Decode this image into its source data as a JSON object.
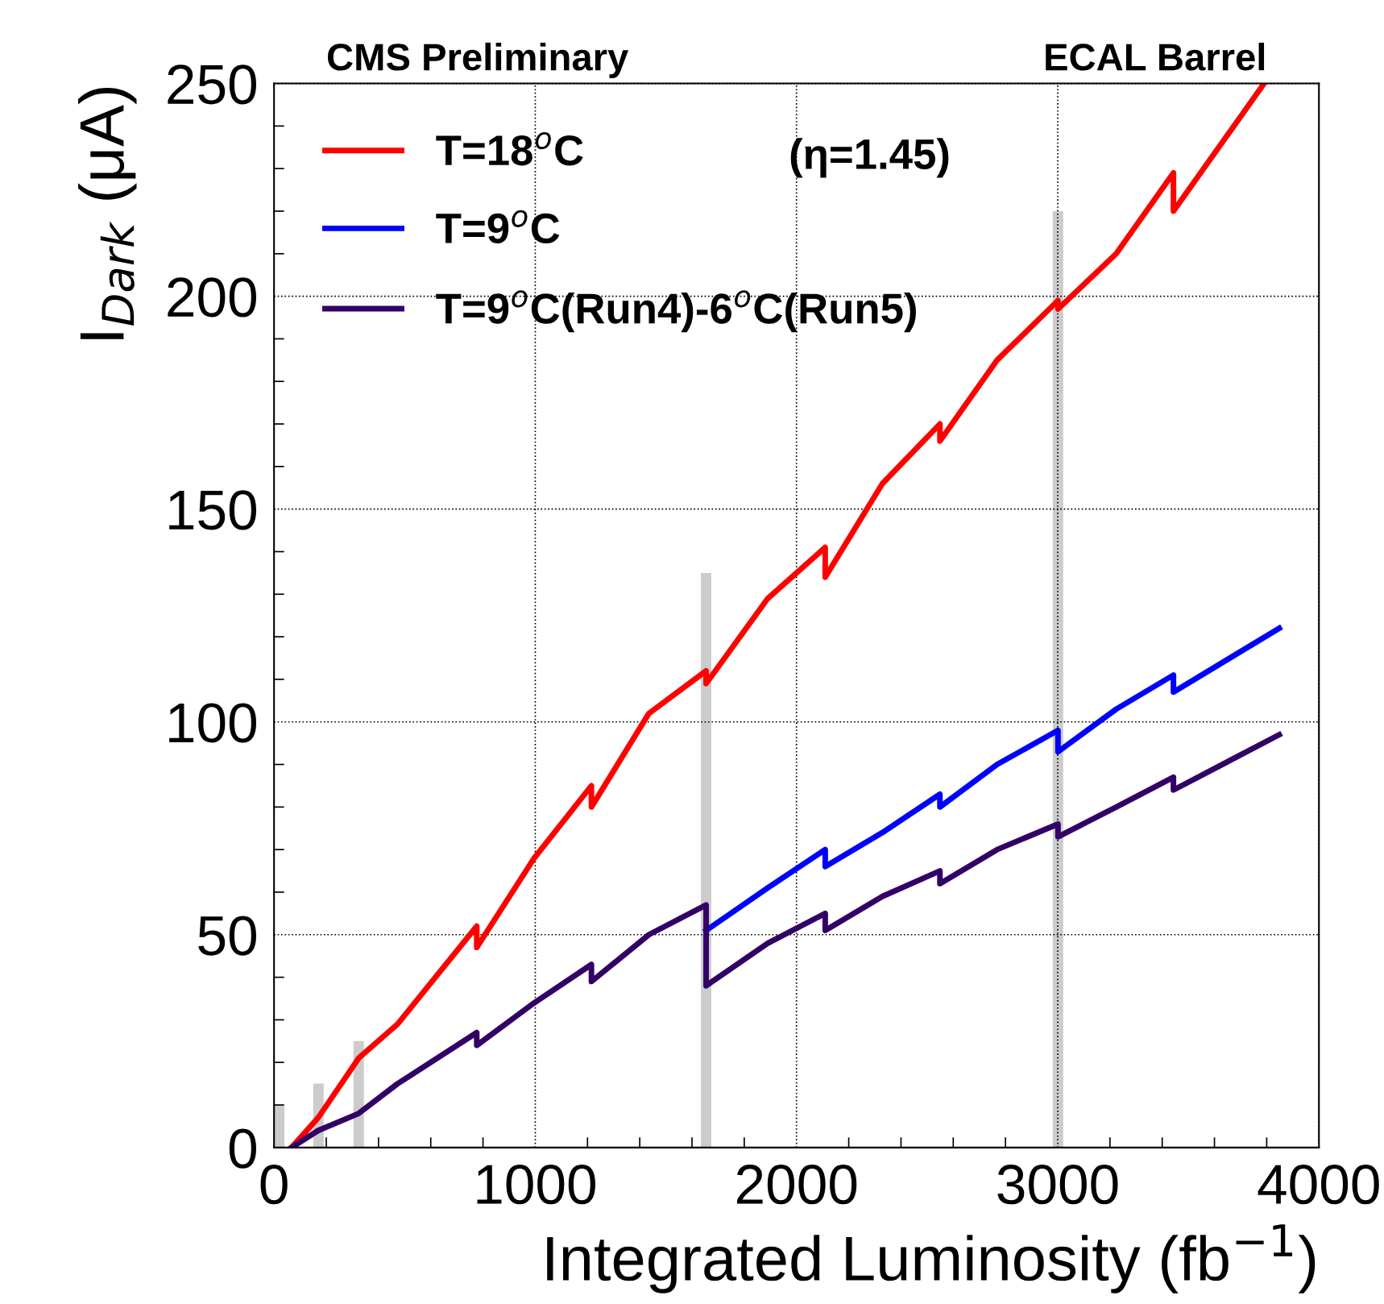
{
  "chart_data": {
    "type": "line",
    "xlabel": "Integrated Luminosity (fb$^{−1}$)",
    "ylabel": "I$_{Dark}$ (μA)",
    "annotations": [
      "CMS Preliminary",
      "ECAL Barrel",
      "(η=1.45)"
    ],
    "xlim": [
      0,
      4000
    ],
    "xticks": [
      0,
      1000,
      2000,
      3000,
      4000
    ],
    "ylim": [
      0,
      250
    ],
    "yticks": [
      0,
      50,
      100,
      150,
      200,
      250
    ],
    "grid": true,
    "legend": "top left",
    "line_style": "solid",
    "marker": "none",
    "series": [
      {
        "type": "bar",
        "color": "#cccccc",
        "x": [
          20,
          170,
          324,
          1654,
          3001
        ],
        "values": [
          10,
          15,
          25,
          135,
          220
        ]
      },
      {
        "name": "T=18$^{o}$C",
        "color": "#ff0000",
        "x": [
          67,
          169,
          324,
          473,
          776,
          776,
          996,
          1215,
          1215,
          1435,
          1654,
          1654,
          1890,
          2110,
          2110,
          2329,
          2549,
          2549,
          2768,
          3001,
          3001,
          3224,
          3443,
          3443,
          3790
        ],
        "values": [
          0,
          7,
          21,
          29,
          52,
          47,
          68,
          85,
          80,
          102,
          112,
          109,
          129,
          141,
          134,
          156,
          170,
          166,
          185,
          199,
          197,
          210,
          229,
          220,
          250
        ]
      },
      {
        "name": "T=9$^{o}$C",
        "color": "#0000ff",
        "x": [
          1654,
          1890,
          2110,
          2110,
          2329,
          2549,
          2549,
          2768,
          3001,
          3001,
          3224,
          3443,
          3443,
          3848
        ],
        "values": [
          51,
          61,
          70,
          66,
          74,
          83,
          80,
          90,
          98,
          93,
          103,
          111,
          107,
          122
        ]
      },
      {
        "name": "T=9$^{o}$C(Run4)-6$^{o}$C(Run5)",
        "color": "#330066",
        "x": [
          67,
          169,
          324,
          473,
          776,
          776,
          996,
          1215,
          1215,
          1435,
          1654,
          1654,
          1890,
          2110,
          2110,
          2329,
          2549,
          2549,
          2768,
          3001,
          3001,
          3224,
          3443,
          3443,
          3848
        ],
        "values": [
          0,
          4,
          8,
          15,
          27,
          24,
          34,
          43,
          39,
          50,
          57,
          38,
          48,
          55,
          51,
          59,
          65,
          62,
          70,
          76,
          73,
          80,
          87,
          84,
          97
        ]
      }
    ]
  }
}
